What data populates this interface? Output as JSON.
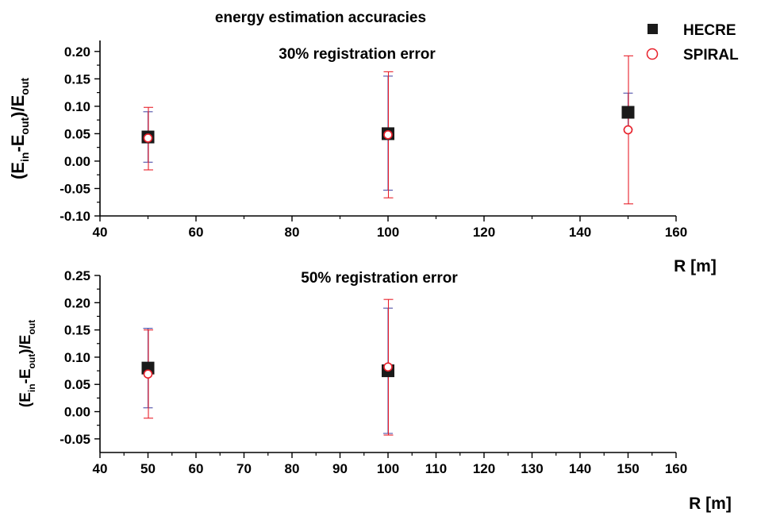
{
  "figure_title": "energy estimation accuracies",
  "legend": {
    "placement": "top-right",
    "entries": [
      {
        "label": "HECRE",
        "marker": "filled-square",
        "color": "#1a1a1a"
      },
      {
        "label": "SPIRAL",
        "marker": "open-circle",
        "color": "#e8202a"
      }
    ]
  },
  "colors": {
    "hecre": "#1a1a1a",
    "hecre_errorbar": "#5050a8",
    "spiral": "#e8202a",
    "axis": "#000000"
  },
  "chart_data": [
    {
      "type": "scatter",
      "title": "30% registration error",
      "xlabel": "R [m]",
      "ylabel": {
        "base": "(E",
        "sub1": "in",
        "mid": "-E",
        "sub2": "out",
        "end": ")/E",
        "sub3": "out"
      },
      "xlim": [
        40,
        160
      ],
      "ylim": [
        -0.1,
        0.22
      ],
      "xticks": [
        40,
        60,
        80,
        100,
        120,
        140,
        160
      ],
      "xtick_labels": [
        "40",
        "60",
        "80",
        "100",
        "120",
        "140",
        "160"
      ],
      "yticks": [
        -0.1,
        -0.05,
        0.0,
        0.05,
        0.1,
        0.15,
        0.2
      ],
      "ytick_labels": [
        "-0.10",
        "-0.05",
        "0.00",
        "0.05",
        "0.10",
        "0.15",
        "0.20"
      ],
      "grid": false,
      "series": [
        {
          "name": "HECRE",
          "x": [
            50,
            100,
            150
          ],
          "y": [
            0.044,
            0.05,
            0.089
          ],
          "err_low": [
            -0.002,
            -0.053,
            0.058
          ],
          "err_high": [
            0.09,
            0.155,
            0.124
          ]
        },
        {
          "name": "SPIRAL",
          "x": [
            50,
            100,
            150
          ],
          "y": [
            0.042,
            0.048,
            0.057
          ],
          "err_low": [
            -0.016,
            -0.067,
            -0.078
          ],
          "err_high": [
            0.098,
            0.163,
            0.192
          ]
        }
      ]
    },
    {
      "type": "scatter",
      "title": "50% registration error",
      "xlabel": "R [m]",
      "ylabel": {
        "base": "(E",
        "sub1": "in",
        "mid": "-E",
        "sub2": "out",
        "end": ")/E",
        "sub3": "out"
      },
      "xlim": [
        40,
        160
      ],
      "ylim": [
        -0.075,
        0.25
      ],
      "xticks": [
        40,
        50,
        60,
        70,
        80,
        90,
        100,
        110,
        120,
        130,
        140,
        150,
        160
      ],
      "xtick_labels": [
        "40",
        "50",
        "60",
        "70",
        "80",
        "90",
        "100",
        "110",
        "120",
        "130",
        "140",
        "150",
        "160"
      ],
      "yticks": [
        -0.05,
        0.0,
        0.05,
        0.1,
        0.15,
        0.2,
        0.25
      ],
      "ytick_labels": [
        "-0.05",
        "0.00",
        "0.05",
        "0.10",
        "0.15",
        "0.20",
        "0.25"
      ],
      "grid": false,
      "series": [
        {
          "name": "HECRE",
          "x": [
            50,
            100
          ],
          "y": [
            0.08,
            0.075
          ],
          "err_low": [
            0.007,
            -0.04
          ],
          "err_high": [
            0.153,
            0.19
          ]
        },
        {
          "name": "SPIRAL",
          "x": [
            50,
            100
          ],
          "y": [
            0.069,
            0.082
          ],
          "err_low": [
            -0.012,
            -0.043
          ],
          "err_high": [
            0.15,
            0.206
          ]
        }
      ]
    }
  ]
}
